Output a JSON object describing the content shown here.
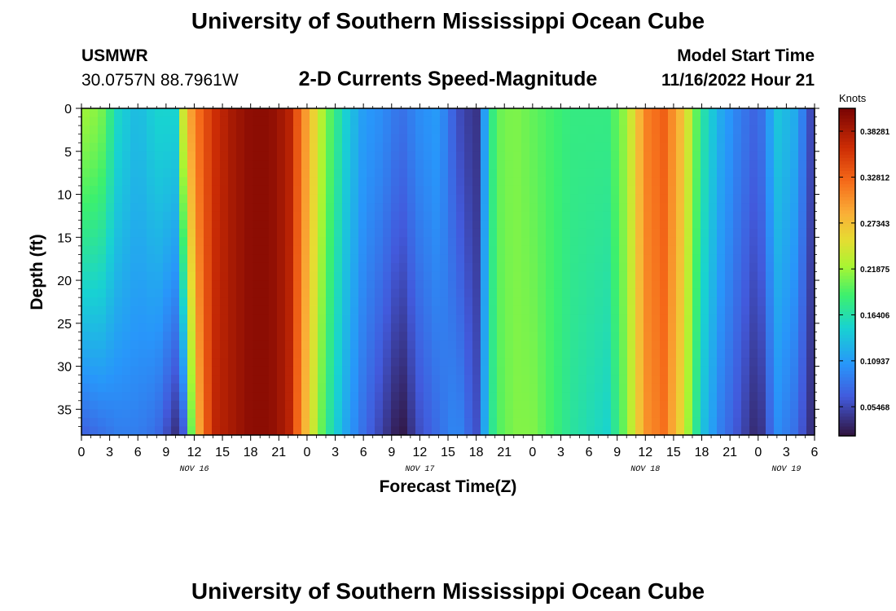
{
  "title": "University of Southern Mississippi Ocean Cube",
  "station": {
    "name": "USMWR",
    "coords": "30.0757N  88.7961W"
  },
  "model_start": {
    "label": "Model Start Time",
    "value": "11/16/2022 Hour 21"
  },
  "footer_title": "University of Southern Mississippi Ocean Cube",
  "chart_data": {
    "type": "heatmap",
    "subtitle": "2-D Currents Speed-Magnitude",
    "xlabel": "Forecast Time(Z)",
    "ylabel": "Depth (ft)",
    "x_range_hours": [
      0,
      78
    ],
    "x_tick_labels": [
      "0",
      "3",
      "6",
      "9",
      "12",
      "15",
      "18",
      "21",
      "0",
      "3",
      "6",
      "9",
      "12",
      "15",
      "18",
      "21",
      "0",
      "3",
      "6",
      "9",
      "12",
      "15",
      "18",
      "21",
      "0",
      "3",
      "6"
    ],
    "date_labels": [
      {
        "text": "NOV 16",
        "at_hour": 12
      },
      {
        "text": "NOV 17",
        "at_hour": 36
      },
      {
        "text": "NOV 18",
        "at_hour": 60
      },
      {
        "text": "NOV 19",
        "at_hour": 75
      }
    ],
    "y_range": [
      0,
      38
    ],
    "y_ticks": [
      0,
      5,
      10,
      15,
      20,
      25,
      30,
      35
    ],
    "y_reversed": true,
    "colorbar": {
      "unit": "Knots",
      "min": 0.02,
      "max": 0.41,
      "tick_values": [
        0.05468,
        0.10937,
        0.16406,
        0.21875,
        0.27343,
        0.32812,
        0.38281
      ],
      "tick_labels": [
        "0.05468",
        "0.10937",
        "0.16406",
        "0.21875",
        "0.27343",
        "0.32812",
        "0.38281"
      ]
    },
    "time_hours": [
      0,
      2,
      4,
      6,
      8,
      10,
      11,
      12,
      14,
      16,
      18,
      20,
      22,
      24,
      26,
      28,
      30,
      32,
      34,
      36,
      38,
      40,
      42,
      44,
      46,
      48,
      50,
      52,
      54,
      56,
      58,
      60,
      62,
      64,
      66,
      68,
      70,
      72,
      74,
      76,
      78
    ],
    "surface_speed": [
      0.22,
      0.21,
      0.15,
      0.13,
      0.15,
      0.15,
      0.26,
      0.31,
      0.36,
      0.385,
      0.4,
      0.4,
      0.38,
      0.29,
      0.21,
      0.15,
      0.11,
      0.1,
      0.08,
      0.1,
      0.11,
      0.06,
      0.04,
      0.2,
      0.21,
      0.2,
      0.19,
      0.18,
      0.18,
      0.18,
      0.22,
      0.31,
      0.33,
      0.27,
      0.17,
      0.12,
      0.09,
      0.07,
      0.14,
      0.12,
      0.04
    ],
    "bottom_speed": [
      0.07,
      0.08,
      0.09,
      0.09,
      0.08,
      0.04,
      0.07,
      0.26,
      0.37,
      0.385,
      0.4,
      0.4,
      0.38,
      0.27,
      0.18,
      0.12,
      0.08,
      0.05,
      0.02,
      0.06,
      0.08,
      0.1,
      0.06,
      0.19,
      0.21,
      0.21,
      0.19,
      0.17,
      0.16,
      0.15,
      0.21,
      0.3,
      0.32,
      0.25,
      0.14,
      0.09,
      0.06,
      0.03,
      0.1,
      0.08,
      0.03
    ]
  }
}
